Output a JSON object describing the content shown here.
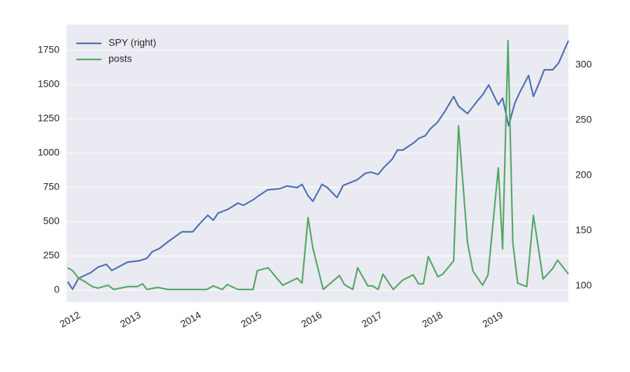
{
  "chart_data": {
    "type": "line",
    "xlim": [
      2011.85,
      2020.16
    ],
    "xticks": [
      2012,
      2013,
      2014,
      2015,
      2016,
      2017,
      2018,
      2019
    ],
    "ylim": [
      -87,
      1939
    ],
    "yticks": [
      0,
      250,
      500,
      750,
      1000,
      1250,
      1500,
      1750
    ],
    "y2lim": [
      85.4,
      336.7
    ],
    "y2ticks": [
      100,
      150,
      200,
      250,
      300
    ],
    "grid": true,
    "legend": "upper-left",
    "series": [
      {
        "name": "SPY (right)",
        "color": "#4c72b0",
        "axis": "y2",
        "x": [
          2011.87,
          2011.95,
          2012.05,
          2012.25,
          2012.37,
          2012.51,
          2012.6,
          2012.86,
          2013.07,
          2013.18,
          2013.27,
          2013.39,
          2013.53,
          2013.76,
          2013.94,
          2014.05,
          2014.19,
          2014.28,
          2014.36,
          2014.51,
          2014.69,
          2014.78,
          2014.94,
          2015.04,
          2015.18,
          2015.38,
          2015.5,
          2015.67,
          2015.75,
          2015.85,
          2015.93,
          2016.08,
          2016.17,
          2016.33,
          2016.43,
          2016.66,
          2016.8,
          2016.89,
          2017.01,
          2017.1,
          2017.24,
          2017.33,
          2017.42,
          2017.61,
          2017.68,
          2017.79,
          2017.87,
          2017.99,
          2018.11,
          2018.26,
          2018.34,
          2018.49,
          2018.66,
          2018.74,
          2018.84,
          2019.0,
          2019.07,
          2019.17,
          2019.27,
          2019.35,
          2019.5,
          2019.58,
          2019.67,
          2019.76,
          2019.9,
          2020.0,
          2020.16
        ],
        "values": [
          103.8,
          97,
          107,
          112,
          117,
          119.6,
          114,
          121.5,
          123,
          125,
          131,
          134,
          140,
          149,
          149,
          156,
          164,
          159.5,
          166,
          169,
          175,
          173,
          178,
          182,
          187,
          188,
          190.5,
          189,
          192,
          181.7,
          176.6,
          192,
          189,
          180,
          191,
          196,
          202,
          203,
          201,
          207,
          214.6,
          223,
          223,
          230,
          233.5,
          236,
          242,
          248,
          257.6,
          271.5,
          262.7,
          256,
          268,
          273,
          282,
          264,
          270,
          245,
          265,
          274.7,
          290.5,
          271.5,
          283,
          295.6,
          295.6,
          302,
          322
        ]
      },
      {
        "name": "posts",
        "color": "#55a868",
        "x": [
          2011.87,
          2011.95,
          2012.05,
          2012.14,
          2012.28,
          2012.37,
          2012.54,
          2012.63,
          2012.86,
          2013.02,
          2013.11,
          2013.18,
          2013.36,
          2013.53,
          2014.17,
          2014.28,
          2014.43,
          2014.51,
          2014.69,
          2014.94,
          2015.01,
          2015.19,
          2015.43,
          2015.67,
          2015.75,
          2015.85,
          2015.93,
          2016.1,
          2016.37,
          2016.45,
          2016.59,
          2016.67,
          2016.84,
          2016.92,
          2017.01,
          2017.09,
          2017.26,
          2017.41,
          2017.59,
          2017.68,
          2017.76,
          2017.84,
          2018.0,
          2018.08,
          2018.26,
          2018.34,
          2018.49,
          2018.58,
          2018.74,
          2018.83,
          2019.0,
          2019.07,
          2019.16,
          2019.24,
          2019.32,
          2019.47,
          2019.58,
          2019.74,
          2019.9,
          2019.98,
          2020.16
        ],
        "values": [
          163,
          143,
          87,
          66,
          26,
          15,
          36,
          5,
          26,
          26,
          46,
          5,
          20,
          5,
          5,
          31,
          5,
          41,
          5,
          5,
          143,
          163,
          36,
          87,
          51,
          530,
          306,
          5,
          107,
          41,
          5,
          163,
          31,
          31,
          5,
          117,
          5,
          71,
          112,
          46,
          46,
          245,
          97,
          117,
          214,
          1199,
          347,
          138,
          36,
          112,
          893,
          301,
          1821,
          347,
          51,
          26,
          546,
          82,
          158,
          219,
          117
        ]
      }
    ]
  }
}
